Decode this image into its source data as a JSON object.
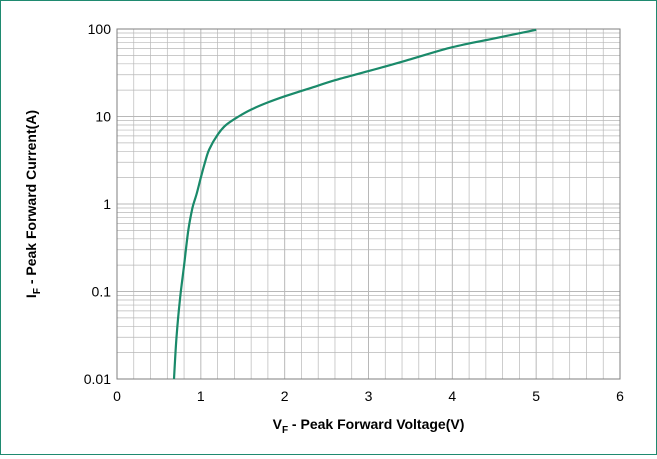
{
  "chart_data": {
    "type": "line",
    "title": "",
    "x_axis": {
      "label_parts": [
        "V",
        "F",
        " - Peak Forward Voltage(V)"
      ],
      "range": [
        0,
        6
      ],
      "tick_labels": [
        "0",
        "1",
        "2",
        "3",
        "4",
        "5",
        "6"
      ],
      "scale": "linear"
    },
    "y_axis": {
      "label_parts": [
        "I",
        "F",
        " - Peak Forward Current(A)"
      ],
      "range": [
        0.01,
        100
      ],
      "tick_labels": [
        "0.01",
        "0.1",
        "1",
        "10",
        "100"
      ],
      "scale": "log"
    },
    "grid": true,
    "legend": "none",
    "series": [
      {
        "color": "#1a8a6a",
        "x": [
          0.68,
          0.71,
          0.75,
          0.8,
          0.85,
          0.9,
          0.95,
          1.0,
          1.05,
          1.1,
          1.2,
          1.3,
          1.45,
          1.6,
          1.8,
          2.0,
          2.3,
          2.6,
          3.0,
          3.5,
          4.0,
          4.5,
          5.0
        ],
        "y": [
          0.01,
          0.03,
          0.08,
          0.2,
          0.5,
          0.9,
          1.3,
          2.0,
          3.0,
          4.2,
          6.2,
          8.0,
          10.0,
          12.0,
          14.5,
          17.0,
          21.0,
          26.0,
          33.0,
          45.0,
          62.0,
          78.0,
          98.0
        ]
      }
    ],
    "colors": {
      "frame": "#1f8a70",
      "curve": "#1a8a6a",
      "grid": "#b8b8b8",
      "axis": "#7f7f7f"
    }
  }
}
